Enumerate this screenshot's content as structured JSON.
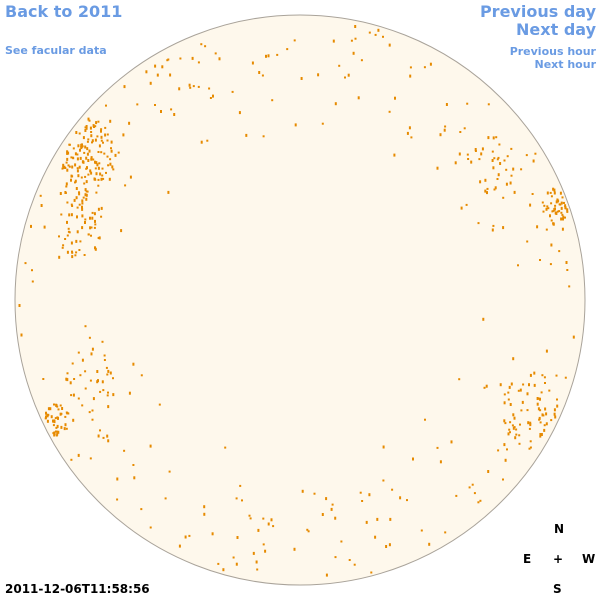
{
  "nav": {
    "back": "Back to 2011",
    "facular_data": "See facular data",
    "previous_day": "Previous day",
    "next_day": "Next day",
    "previous_hour": "Previous hour",
    "next_hour": "Next hour"
  },
  "timestamp": "2011-12-06T11:58:56",
  "compass": {
    "north": "N",
    "east": "E",
    "center": "+",
    "west": "W",
    "south": "S"
  }
}
